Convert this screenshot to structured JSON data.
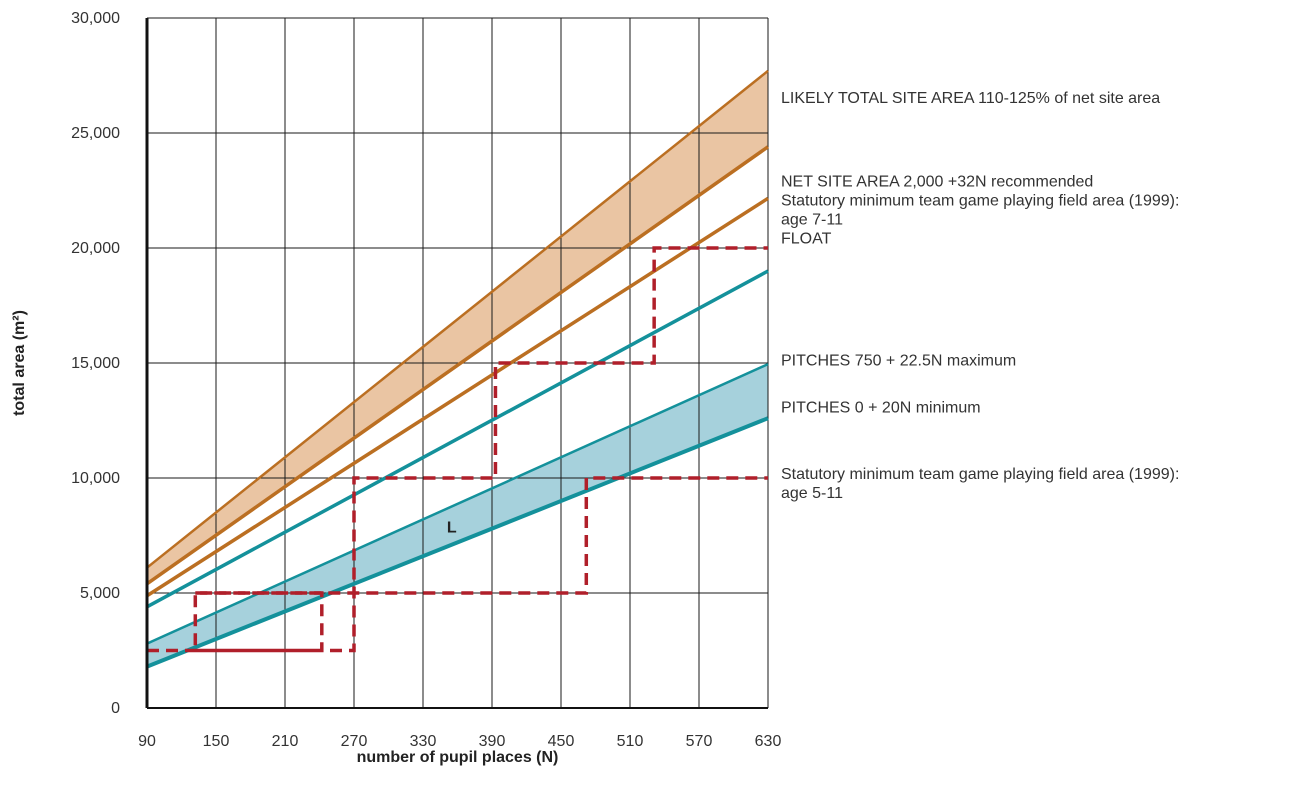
{
  "chart_data": {
    "type": "line",
    "xlabel": "number of pupil places (N)",
    "ylabel": "total area (m²)",
    "xlim": [
      90,
      630
    ],
    "ylim": [
      0,
      30000
    ],
    "x_ticks": [
      "90",
      "150",
      "210",
      "270",
      "330",
      "390",
      "450",
      "510",
      "570",
      "630"
    ],
    "y_ticks": [
      "0",
      "5,000",
      "10,000",
      "15,000",
      "20,000",
      "25,000",
      "30,000"
    ],
    "grid": true,
    "bands": [
      {
        "color": "#eac5a3",
        "upper": {
          "x": [
            90,
            630
          ],
          "y": [
            6100,
            27700
          ]
        },
        "lower": {
          "x": [
            90,
            630
          ],
          "y": [
            5400,
            24400
          ]
        }
      },
      {
        "color": "#a6d1dc",
        "upper": {
          "x": [
            90,
            630
          ],
          "y": [
            2800,
            14950
          ]
        },
        "lower": {
          "x": [
            90,
            630
          ],
          "y": [
            1800,
            12600
          ]
        }
      }
    ],
    "series": [
      {
        "color": "#bb6f22",
        "stroke": 2.5,
        "x": [
          90,
          630
        ],
        "y": [
          6100,
          27700
        ]
      },
      {
        "color": "#bb6f22",
        "stroke": 3.5,
        "x": [
          90,
          630
        ],
        "y": [
          5400,
          24400
        ]
      },
      {
        "color": "#bb6f22",
        "stroke": 3.5,
        "x": [
          90,
          630
        ],
        "y": [
          4880,
          22160
        ]
      },
      {
        "color": "#14919b",
        "stroke": 3.5,
        "x": [
          90,
          630
        ],
        "y": [
          4400,
          19000
        ]
      },
      {
        "color": "#14919b",
        "stroke": 2.5,
        "x": [
          90,
          630
        ],
        "y": [
          2800,
          14950
        ]
      },
      {
        "color": "#14919b",
        "stroke": 4,
        "x": [
          90,
          630
        ],
        "y": [
          1800,
          12600
        ]
      }
    ],
    "steps": [
      {
        "color": "#b01f2a",
        "x": [
          90,
          242,
          242,
          132,
          132,
          270,
          270,
          393,
          393,
          531,
          531,
          630
        ],
        "y": [
          2500,
          2500,
          5000,
          5000,
          2500,
          2500,
          10000,
          10000,
          15000,
          15000,
          20000,
          20000
        ]
      },
      {
        "color": "#b01f2a",
        "x": [
          132,
          472,
          472,
          630
        ],
        "y": [
          5000,
          5000,
          10000,
          10000
        ]
      }
    ],
    "annotations": [
      {
        "lines": [
          "LIKELY TOTAL SITE AREA 110-125% of net site area"
        ],
        "y": 26300
      },
      {
        "lines": [
          "NET SITE AREA 2,000 +32N recommended",
          "Statutory minimum team game playing field area (1999):",
          "age 7-11",
          "FLOAT"
        ],
        "y": 22680
      },
      {
        "lines": [
          "PITCHES 750 + 22.5N maximum"
        ],
        "y": 14900
      },
      {
        "lines": [
          "PITCHES 0 + 20N minimum"
        ],
        "y": 12850
      },
      {
        "lines": [
          "Statutory minimum team game playing field area (1999):",
          "age 5-11"
        ],
        "y": 9950
      }
    ],
    "region_label": {
      "text": "L",
      "x": 355,
      "y": 7900
    }
  }
}
